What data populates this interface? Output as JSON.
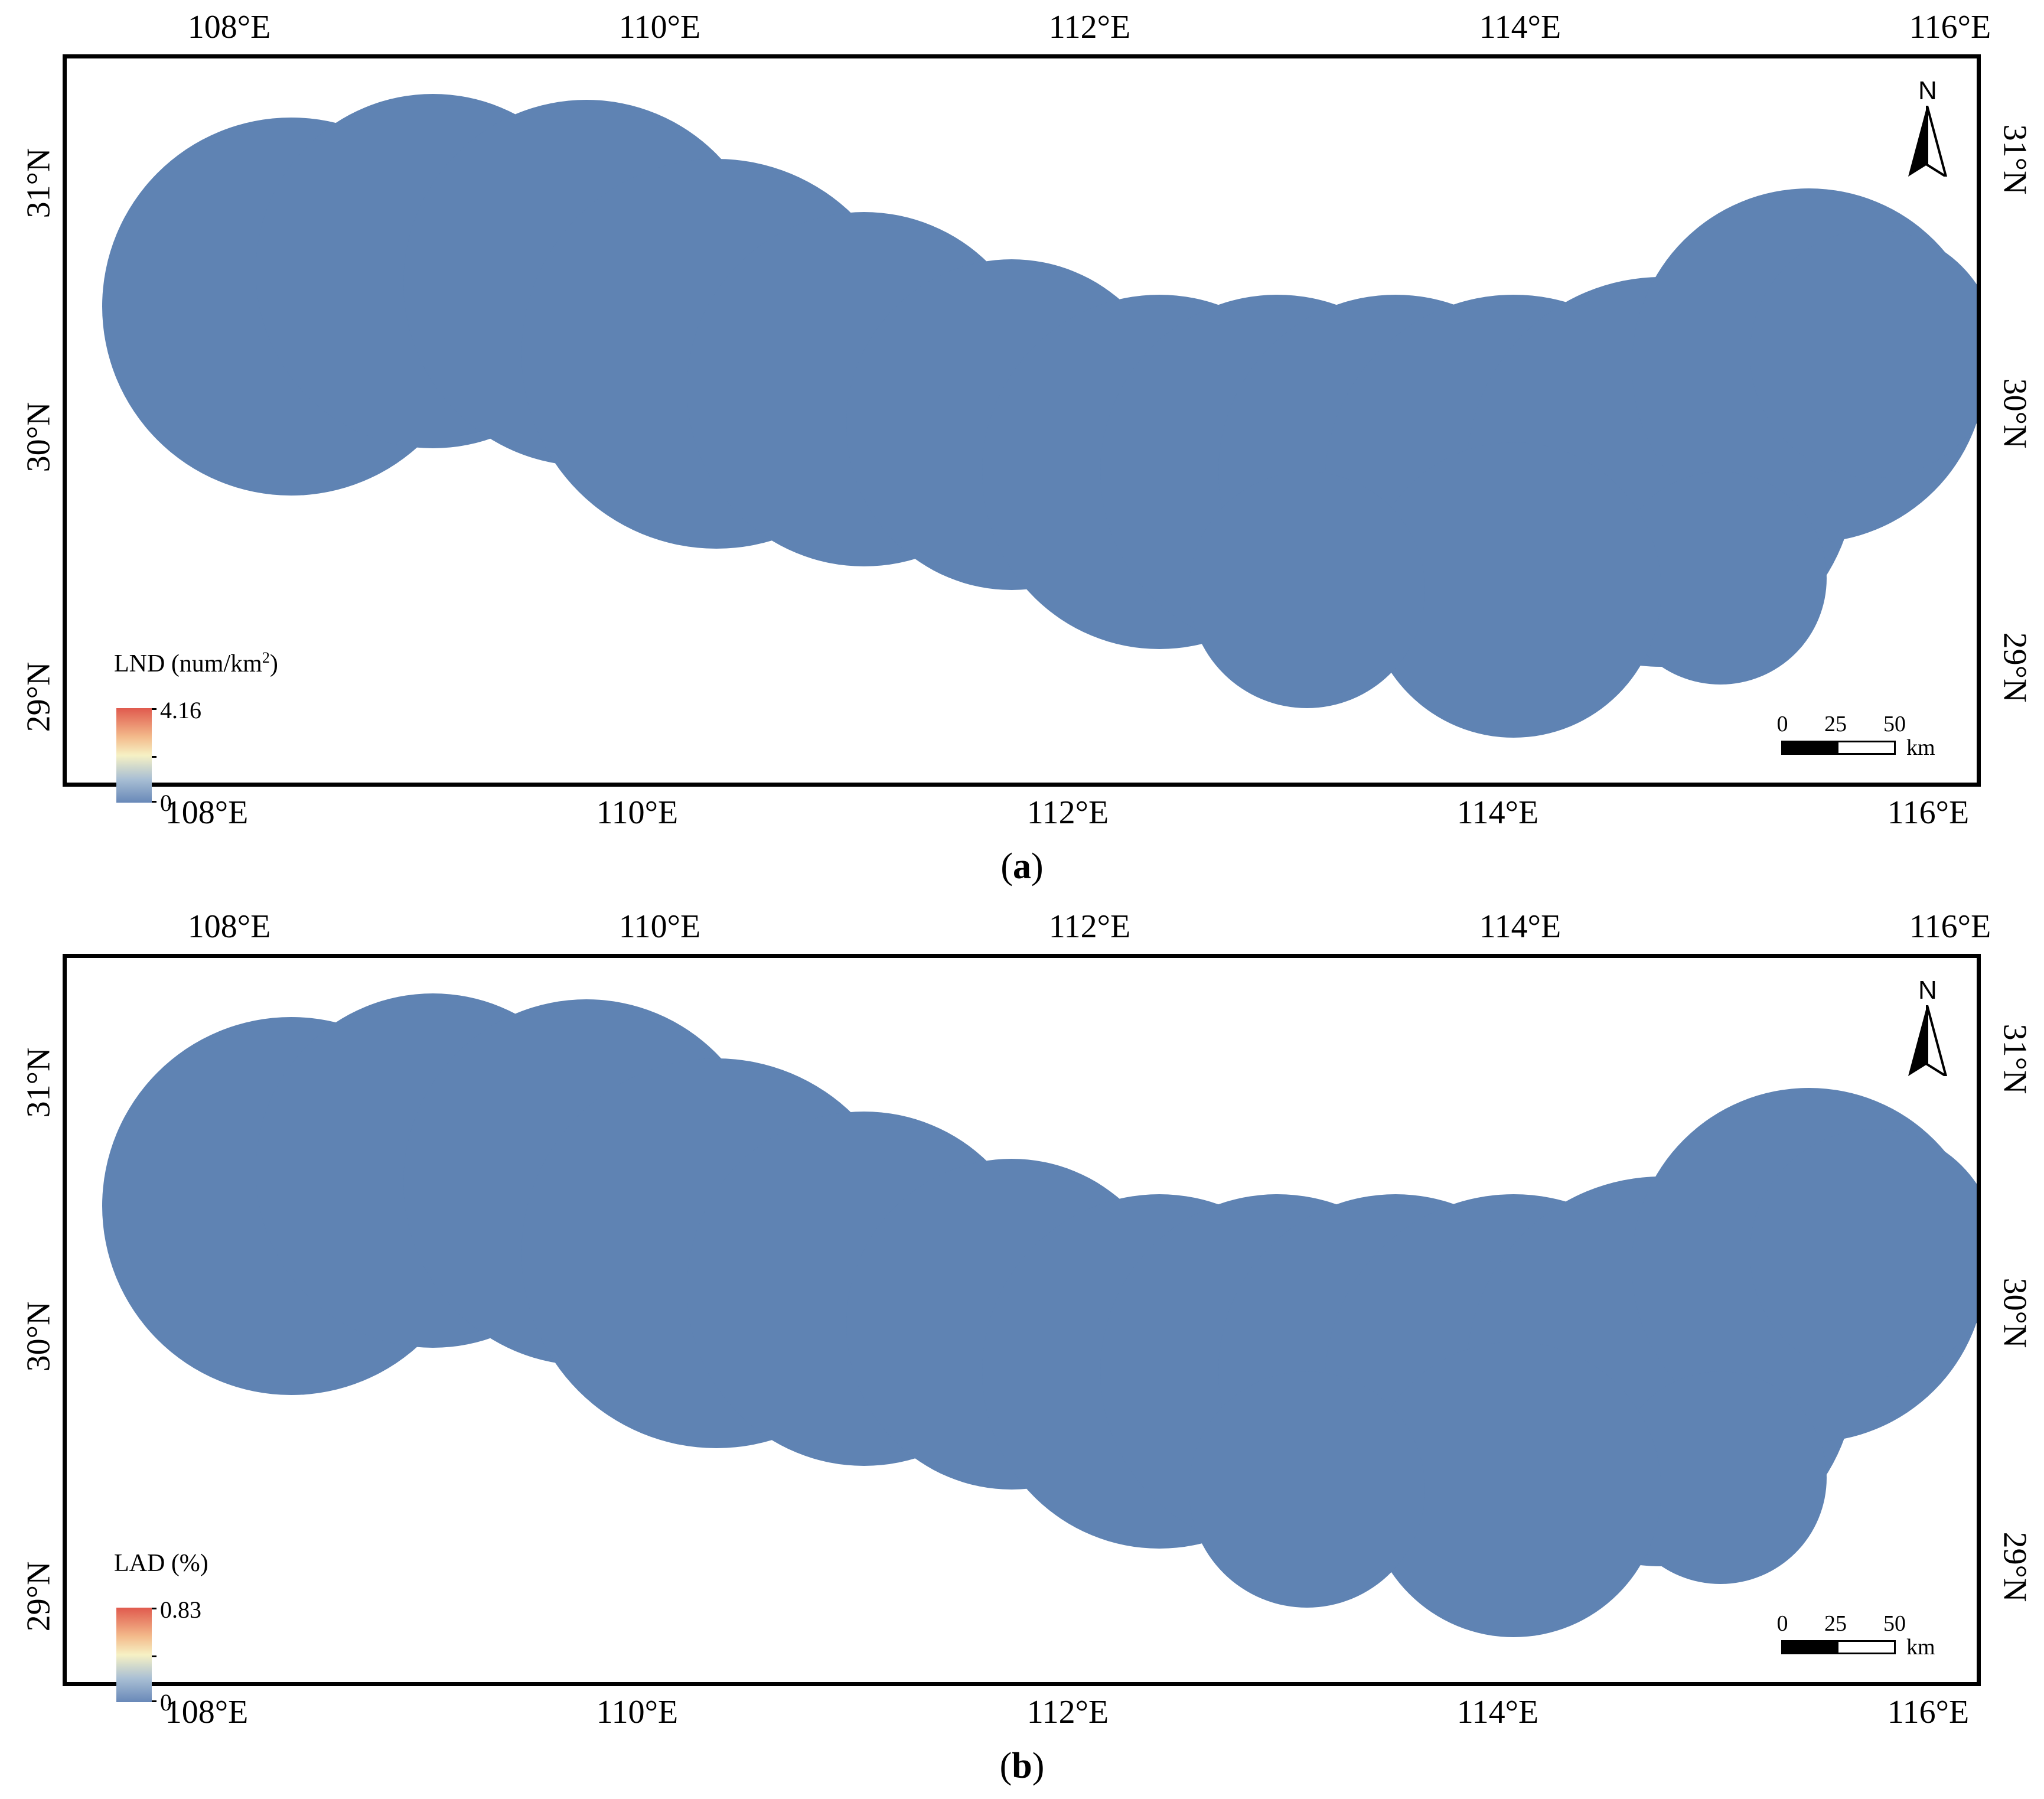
{
  "panels": [
    {
      "id": "a",
      "caption": "a",
      "legend_title": "LND (num/km",
      "legend_title_sup": "2",
      "legend_title_close": ")",
      "legend_max": "4.16",
      "legend_min": "0"
    },
    {
      "id": "b",
      "caption": "b",
      "legend_title": "LAD (%)",
      "legend_title_sup": "",
      "legend_title_close": "",
      "legend_max": "0.83",
      "legend_min": "0"
    }
  ],
  "lon_ticks": [
    "108°E",
    "110°E",
    "112°E",
    "114°E",
    "116°E"
  ],
  "lat_ticks": [
    "29°N",
    "30°N",
    "31°N"
  ],
  "scale": {
    "labels": [
      "0",
      "25",
      "50"
    ],
    "unit": "km"
  },
  "north": "N",
  "colors": {
    "low": "#6888b8",
    "mid": "#f6f1c4",
    "high": "#e05a4e",
    "base": "#5f83b3"
  }
}
